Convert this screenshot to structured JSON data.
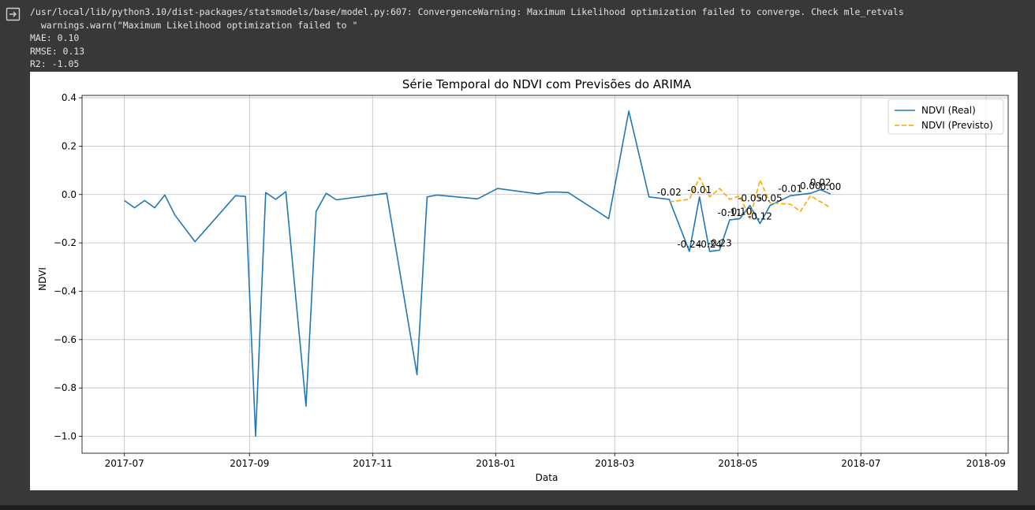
{
  "output": {
    "icon": "output-expand-icon",
    "warning_line1": "/usr/local/lib/python3.10/dist-packages/statsmodels/base/model.py:607: ConvergenceWarning: Maximum Likelihood optimization failed to converge. Check mle_retvals",
    "warning_line2": "  warnings.warn(\"Maximum Likelihood optimization failed to \"",
    "mae": "MAE: 0.10",
    "rmse": "RMSE: 0.13",
    "r2": "R2: -1.05"
  },
  "chart_data": {
    "type": "line",
    "title": "Série Temporal do NDVI com Previsões do ARIMA",
    "xlabel": "Data",
    "ylabel": "NDVI",
    "xlim": [
      "2017-06-10",
      "2018-09-12"
    ],
    "ylim": [
      -1.07,
      0.41
    ],
    "x_ticks": [
      "2017-07-01",
      "2017-09-01",
      "2017-11-01",
      "2018-01-01",
      "2018-03-01",
      "2018-05-01",
      "2018-07-01",
      "2018-09-01"
    ],
    "x_tick_labels": [
      "2017-07",
      "2017-09",
      "2017-11",
      "2018-01",
      "2018-03",
      "2018-05",
      "2018-07",
      "2018-09"
    ],
    "y_ticks": [
      0.4,
      0.2,
      0.0,
      -0.2,
      -0.4,
      -0.6,
      -0.8,
      -1.0
    ],
    "y_tick_labels": [
      "0.4",
      "0.2",
      "0.0",
      "−0.2",
      "−0.4",
      "−0.6",
      "−0.8",
      "−1.0"
    ],
    "grid": true,
    "legend_position": "top-right",
    "series": [
      {
        "name": "NDVI (Real)",
        "color": "#1f77b4",
        "style": "solid",
        "points": [
          [
            "2017-07-01",
            -0.025
          ],
          [
            "2017-07-06",
            -0.055
          ],
          [
            "2017-07-11",
            -0.025
          ],
          [
            "2017-07-16",
            -0.055
          ],
          [
            "2017-07-21",
            -0.002
          ],
          [
            "2017-07-26",
            -0.085
          ],
          [
            "2017-08-05",
            -0.195
          ],
          [
            "2017-08-25",
            -0.005
          ],
          [
            "2017-08-30",
            -0.008
          ],
          [
            "2017-09-04",
            -1.0
          ],
          [
            "2017-09-09",
            0.008
          ],
          [
            "2017-09-14",
            -0.02
          ],
          [
            "2017-09-19",
            0.012
          ],
          [
            "2017-09-29",
            -0.875
          ],
          [
            "2017-10-04",
            -0.07
          ],
          [
            "2017-10-09",
            0.005
          ],
          [
            "2017-10-14",
            -0.022
          ],
          [
            "2017-11-08",
            0.005
          ],
          [
            "2017-11-23",
            -0.745
          ],
          [
            "2017-11-28",
            -0.01
          ],
          [
            "2017-12-03",
            -0.002
          ],
          [
            "2017-12-23",
            -0.018
          ],
          [
            "2018-01-02",
            0.025
          ],
          [
            "2018-01-22",
            0.003
          ],
          [
            "2018-01-27",
            0.01
          ],
          [
            "2018-02-01",
            0.01
          ],
          [
            "2018-02-06",
            0.008
          ],
          [
            "2018-02-26",
            -0.1
          ],
          [
            "2018-03-08",
            0.345
          ],
          [
            "2018-03-18",
            -0.01
          ],
          [
            "2018-03-28",
            -0.02
          ],
          [
            "2018-04-07",
            -0.235
          ],
          [
            "2018-04-12",
            -0.01
          ],
          [
            "2018-04-17",
            -0.235
          ],
          [
            "2018-04-22",
            -0.23
          ],
          [
            "2018-04-27",
            -0.105
          ],
          [
            "2018-05-02",
            -0.1
          ],
          [
            "2018-05-07",
            -0.045
          ],
          [
            "2018-05-12",
            -0.12
          ],
          [
            "2018-05-17",
            -0.045
          ],
          [
            "2018-05-27",
            -0.005
          ],
          [
            "2018-06-06",
            0.005
          ],
          [
            "2018-06-11",
            0.02
          ],
          [
            "2018-06-16",
            0.002
          ]
        ]
      },
      {
        "name": "NDVI (Previsto)",
        "color": "#ffa500",
        "style": "dashed",
        "points": [
          [
            "2018-03-28",
            -0.03
          ],
          [
            "2018-04-07",
            -0.02
          ],
          [
            "2018-04-12",
            0.07
          ],
          [
            "2018-04-17",
            -0.01
          ],
          [
            "2018-04-22",
            0.025
          ],
          [
            "2018-04-27",
            -0.02
          ],
          [
            "2018-05-02",
            -0.005
          ],
          [
            "2018-05-07",
            -0.1
          ],
          [
            "2018-05-12",
            0.06
          ],
          [
            "2018-05-17",
            -0.035
          ],
          [
            "2018-05-27",
            -0.04
          ],
          [
            "2018-06-01",
            -0.07
          ],
          [
            "2018-06-06",
            -0.005
          ],
          [
            "2018-06-16",
            -0.055
          ]
        ]
      }
    ],
    "annotations": [
      {
        "text": "-0.02",
        "x": "2018-03-28",
        "y": -0.02
      },
      {
        "text": "-0.24",
        "x": "2018-04-07",
        "y": -0.235
      },
      {
        "text": "-0.01",
        "x": "2018-04-12",
        "y": -0.01
      },
      {
        "text": "-0.24",
        "x": "2018-04-17",
        "y": -0.235
      },
      {
        "text": "-0.23",
        "x": "2018-04-22",
        "y": -0.23
      },
      {
        "text": "-0.11",
        "x": "2018-04-27",
        "y": -0.105
      },
      {
        "text": "-0.10",
        "x": "2018-05-02",
        "y": -0.1
      },
      {
        "text": "-0.05",
        "x": "2018-05-07",
        "y": -0.045
      },
      {
        "text": "-0.12",
        "x": "2018-05-12",
        "y": -0.12
      },
      {
        "text": "-0.05",
        "x": "2018-05-17",
        "y": -0.045
      },
      {
        "text": "-0.01",
        "x": "2018-05-27",
        "y": -0.005
      },
      {
        "text": "0.00",
        "x": "2018-06-06",
        "y": 0.005
      },
      {
        "text": "0.02",
        "x": "2018-06-11",
        "y": 0.02
      },
      {
        "text": "0.00",
        "x": "2018-06-16",
        "y": 0.002
      }
    ]
  }
}
